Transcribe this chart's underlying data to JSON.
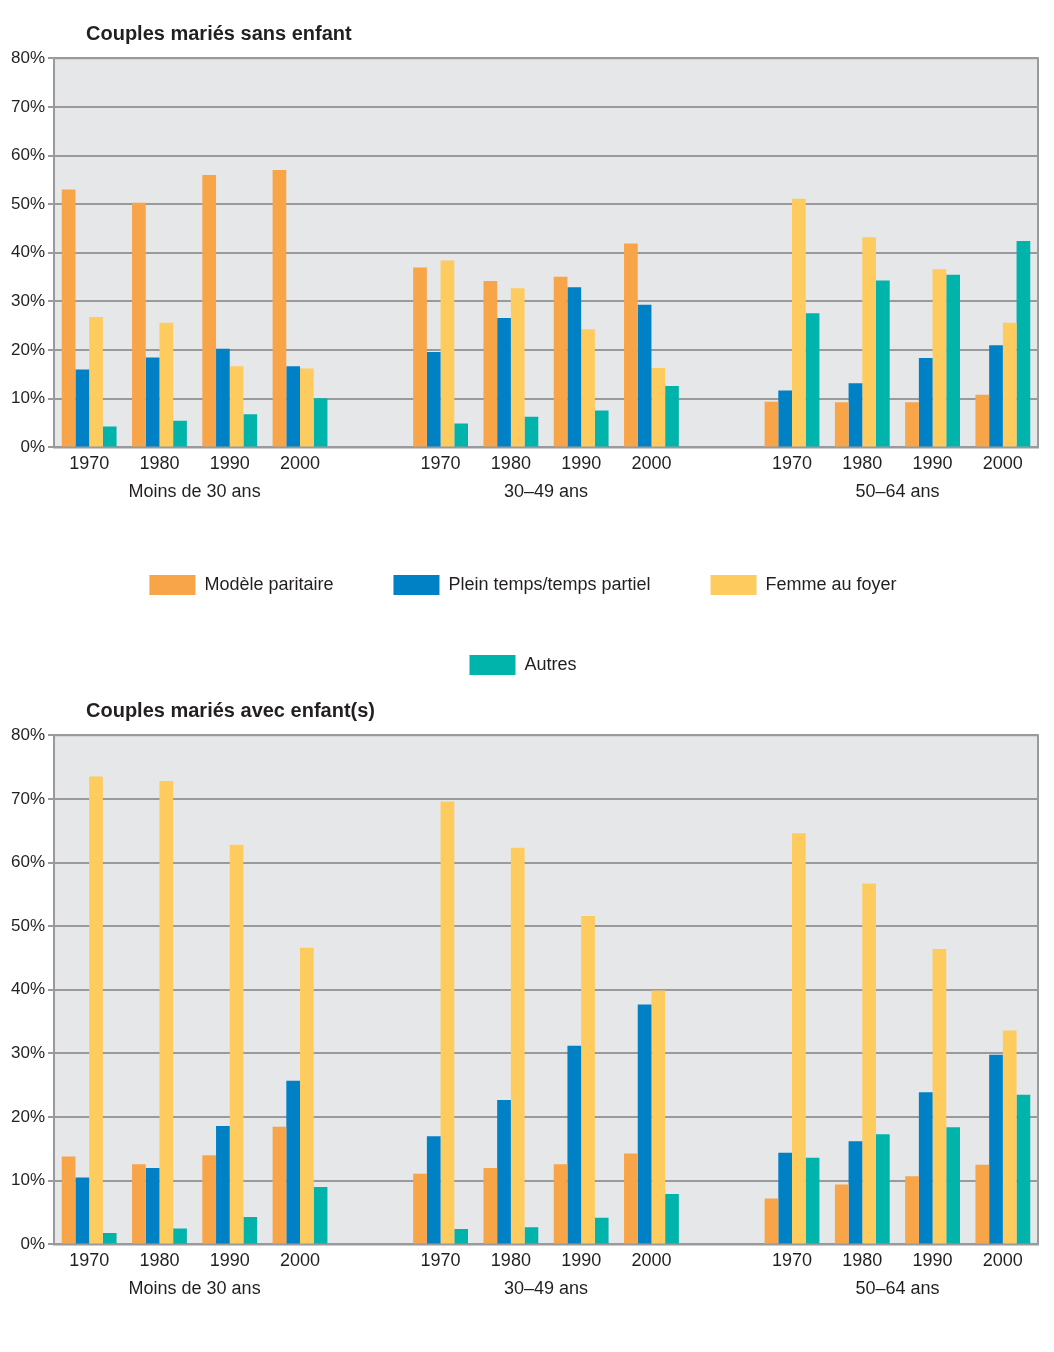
{
  "chart_data": [
    {
      "type": "bar",
      "title": "Couples mariés sans enfant",
      "categories": [
        "1970",
        "1980",
        "1990",
        "2000",
        "1970",
        "1980",
        "1990",
        "2000",
        "1970",
        "1980",
        "1990",
        "2000"
      ],
      "annotations": [
        "Moins de 30 ans",
        "30–49 ans",
        "50–64 ans"
      ],
      "ylim": [
        0,
        80
      ],
      "yticks": [
        {
          "value": 0,
          "label": "0%"
        },
        {
          "value": 10,
          "label": "10%"
        },
        {
          "value": 20,
          "label": "20%"
        },
        {
          "value": 30,
          "label": "30%"
        },
        {
          "value": 40,
          "label": "40%"
        },
        {
          "value": 50,
          "label": "50%"
        },
        {
          "value": 60,
          "label": "60%"
        },
        {
          "value": 70,
          "label": "70%"
        },
        {
          "value": 80,
          "label": "80%"
        }
      ],
      "grid": "y",
      "legend": "bottom",
      "series": [
        {
          "name": "Modèle paritaire",
          "color": "#f8a54a",
          "values": [
            53,
            50.3,
            56,
            57,
            37,
            34.2,
            35.1,
            41.9,
            9.4,
            9.3,
            9.3,
            10.8
          ]
        },
        {
          "name": "Plein temps/temps partiel",
          "color": "#0081c6",
          "values": [
            16,
            18.5,
            20.3,
            16.7,
            19.6,
            26.6,
            32.9,
            29.3,
            11.7,
            13.2,
            18.4,
            21
          ]
        },
        {
          "name": "Femme au foyer",
          "color": "#fecb5e",
          "values": [
            26.8,
            25.6,
            16.7,
            16.2,
            38.4,
            32.7,
            24.3,
            16.3,
            51.1,
            43.2,
            36.6,
            25.6
          ]
        },
        {
          "name": "Autres",
          "color": "#00b3ab",
          "values": [
            4.3,
            5.5,
            6.8,
            10.1,
            4.9,
            6.3,
            7.6,
            12.6,
            27.6,
            34.3,
            35.5,
            42.4
          ]
        }
      ]
    },
    {
      "type": "bar",
      "title": "Couples mariés avec enfant(s)",
      "categories": [
        "1970",
        "1980",
        "1990",
        "2000",
        "1970",
        "1980",
        "1990",
        "2000",
        "1970",
        "1980",
        "1990",
        "2000"
      ],
      "annotations": [
        "Moins de 30 ans",
        "30–49 ans",
        "50–64 ans"
      ],
      "ylim": [
        0,
        80
      ],
      "yticks": [
        {
          "value": 0,
          "label": "0%"
        },
        {
          "value": 10,
          "label": "10%"
        },
        {
          "value": 20,
          "label": "20%"
        },
        {
          "value": 30,
          "label": "30%"
        },
        {
          "value": 40,
          "label": "40%"
        },
        {
          "value": 50,
          "label": "50%"
        },
        {
          "value": 60,
          "label": "60%"
        },
        {
          "value": 70,
          "label": "70%"
        },
        {
          "value": 80,
          "label": "80%"
        }
      ],
      "grid": "y",
      "series": [
        {
          "color": "#f8a54a",
          "values": [
            13.8,
            12.6,
            14,
            18.5,
            11.1,
            12,
            12.6,
            14.3,
            7.2,
            9.4,
            10.7,
            12.5
          ]
        },
        {
          "color": "#0081c6",
          "values": [
            10.5,
            12,
            18.6,
            25.7,
            17,
            22.7,
            31.2,
            37.7,
            14.4,
            16.2,
            23.9,
            29.8
          ]
        },
        {
          "color": "#fecb5e",
          "values": [
            73.5,
            72.8,
            62.8,
            46.6,
            69.6,
            62.3,
            51.6,
            39.9,
            64.6,
            56.7,
            46.4,
            33.6
          ]
        },
        {
          "color": "#00b3ab",
          "values": [
            1.8,
            2.5,
            4.3,
            9,
            2.4,
            2.7,
            4.2,
            7.9,
            13.6,
            17.3,
            18.4,
            23.5
          ]
        }
      ]
    }
  ]
}
